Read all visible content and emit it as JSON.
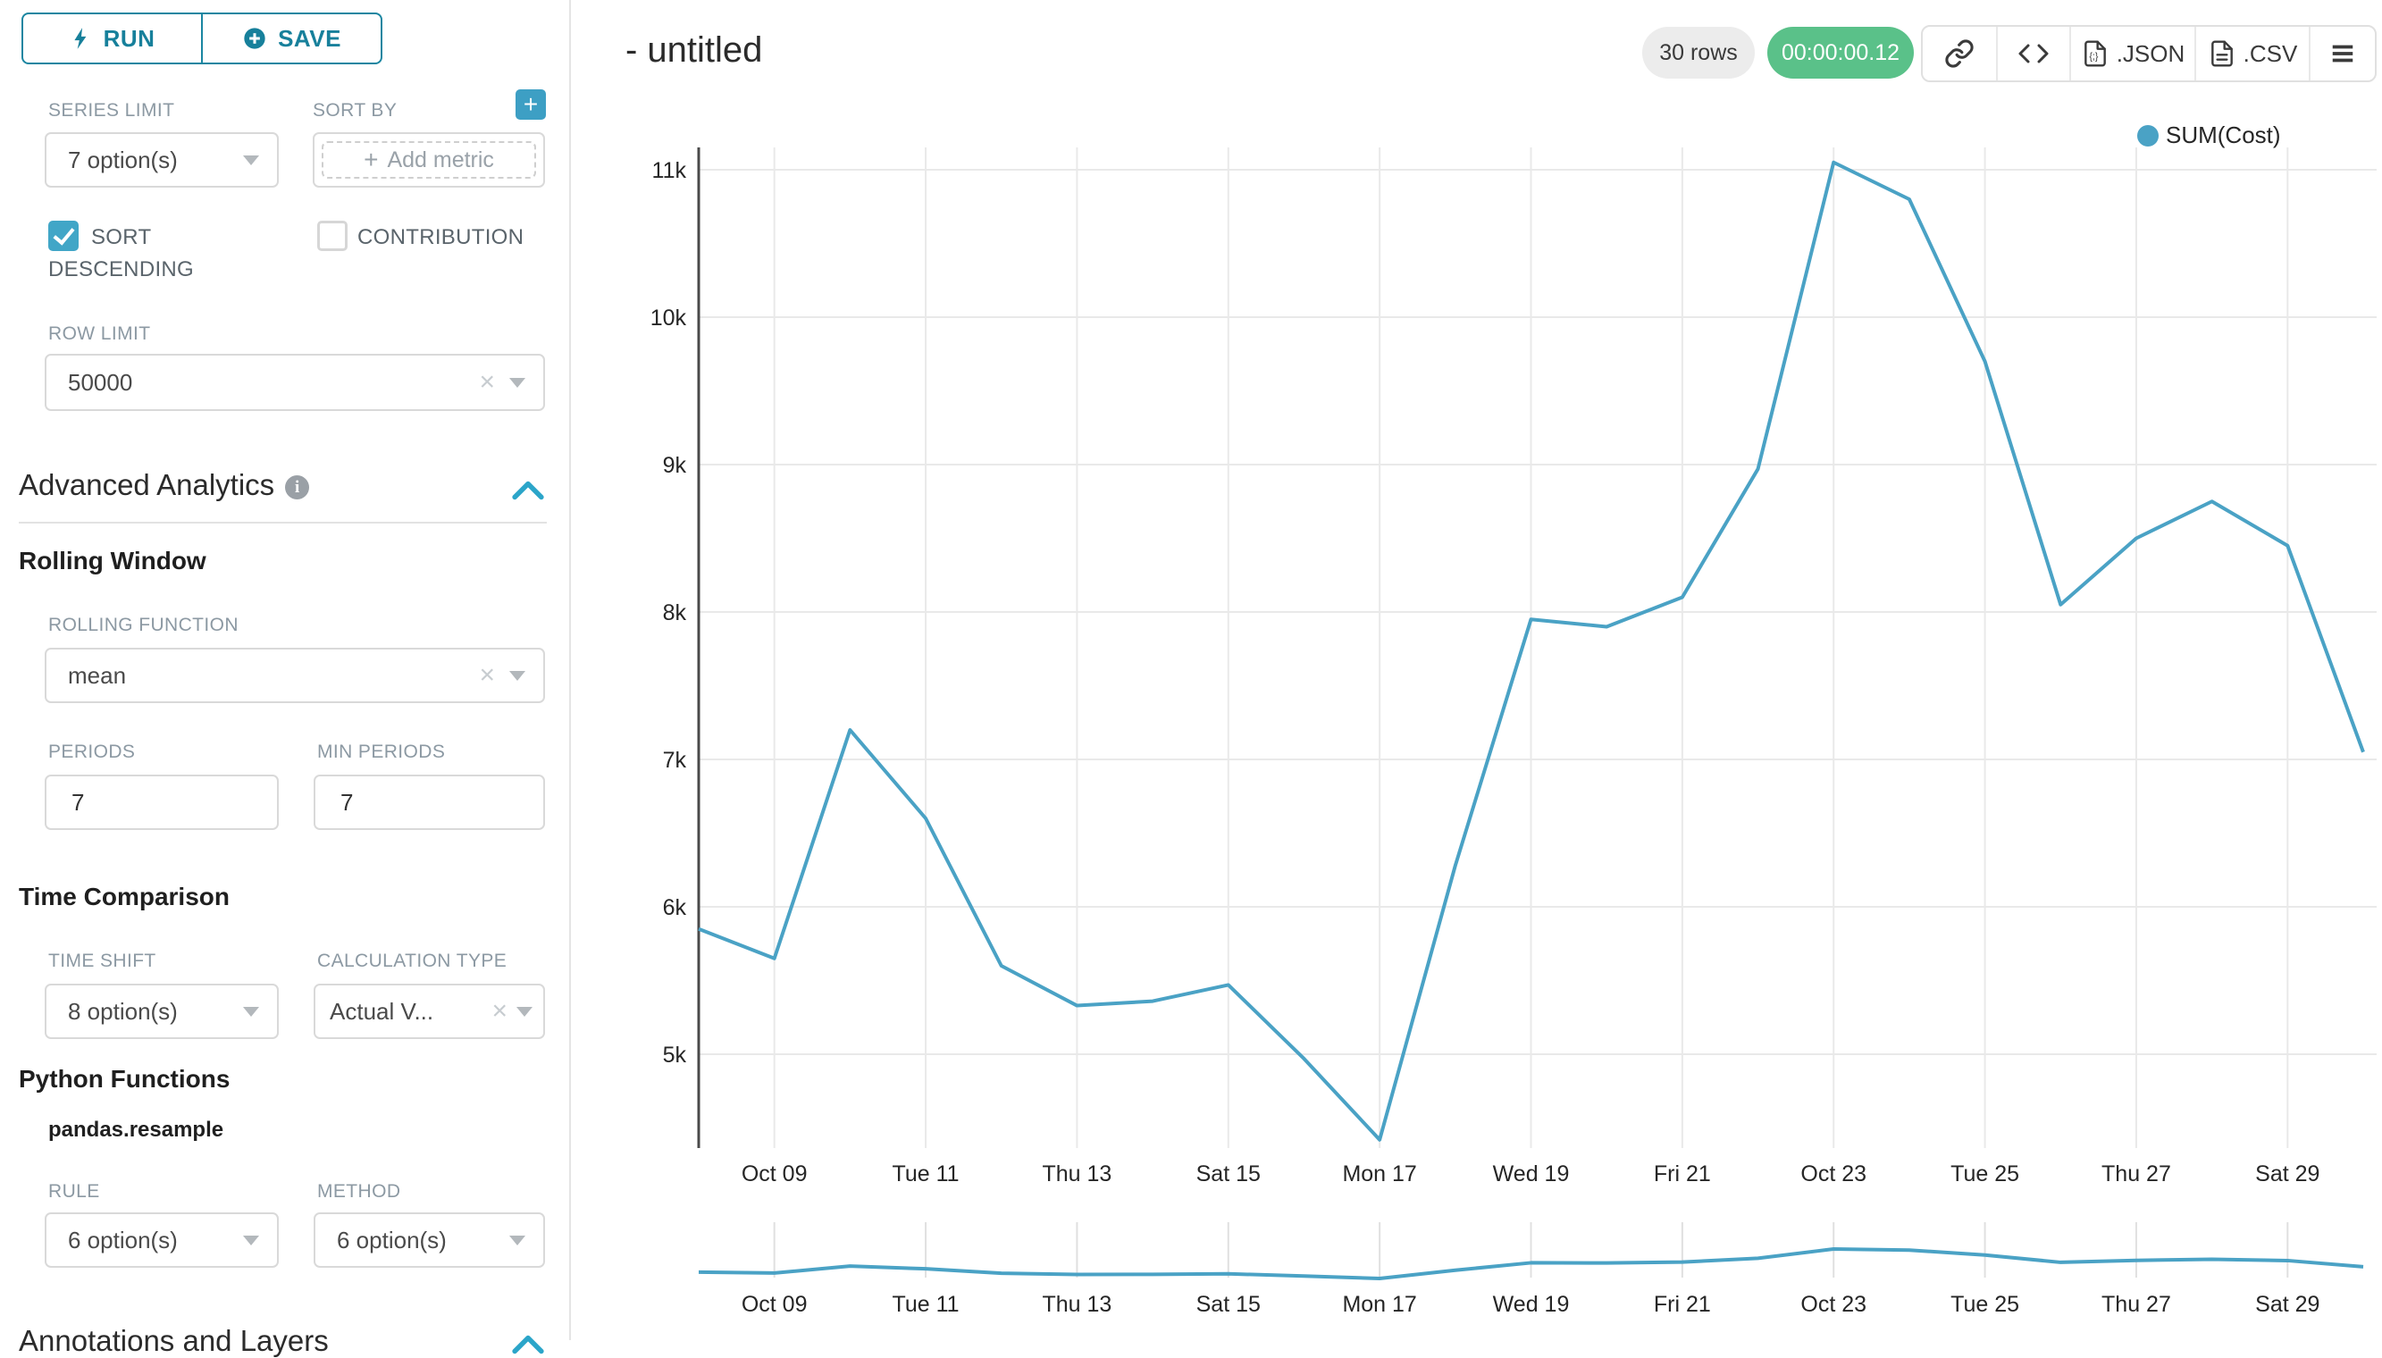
{
  "header": {
    "title": "- untitled",
    "rows_badge": "30 rows",
    "timer": "00:00:00.12",
    "json_label": ".JSON",
    "csv_label": ".CSV"
  },
  "panel": {
    "run_label": "RUN",
    "save_label": "SAVE",
    "series_limit": {
      "label": "SERIES LIMIT",
      "value": "7 option(s)"
    },
    "sort_by": {
      "label": "SORT BY",
      "placeholder": "Add metric"
    },
    "sort_descending_line1": "SORT",
    "sort_descending_line2": "DESCENDING",
    "contribution_label": "CONTRIBUTION",
    "row_limit": {
      "label": "ROW LIMIT",
      "value": "50000"
    },
    "advanced_analytics_title": "Advanced Analytics",
    "rolling_window": {
      "title": "Rolling Window",
      "rolling_function": {
        "label": "ROLLING FUNCTION",
        "value": "mean"
      },
      "periods": {
        "label": "PERIODS",
        "value": "7"
      },
      "min_periods": {
        "label": "MIN PERIODS",
        "value": "7"
      }
    },
    "time_comparison": {
      "title": "Time Comparison",
      "time_shift": {
        "label": "TIME SHIFT",
        "value": "8 option(s)"
      },
      "calculation_type": {
        "label": "CALCULATION TYPE",
        "value": "Actual V..."
      }
    },
    "python_functions": {
      "title": "Python Functions",
      "subtitle": "pandas.resample",
      "rule": {
        "label": "RULE",
        "value": "6 option(s)"
      },
      "method": {
        "label": "METHOD",
        "value": "6 option(s)"
      }
    },
    "annotations_title": "Annotations and Layers"
  },
  "colors": {
    "accent_dark": "#17809b",
    "accent": "#41a6c7",
    "line": "#4aa2c5",
    "timer_green": "#5ac189",
    "rows_badge_bg": "#ececec",
    "grid": "#e9e9e9",
    "axis": "#4a4a4a",
    "tick_text": "#262626"
  },
  "chart_data": {
    "type": "line",
    "legend": "SUM(Cost)",
    "legend_position": "top-right",
    "grid": true,
    "ylim": [
      4250,
      11150
    ],
    "y_ticks": [
      {
        "label": "5k",
        "value": 5000
      },
      {
        "label": "6k",
        "value": 6000
      },
      {
        "label": "7k",
        "value": 7000
      },
      {
        "label": "8k",
        "value": 8000
      },
      {
        "label": "9k",
        "value": 9000
      },
      {
        "label": "10k",
        "value": 10000
      },
      {
        "label": "11k",
        "value": 11000
      }
    ],
    "x_ticks": [
      {
        "label": "Oct 09",
        "day": 1
      },
      {
        "label": "Tue 11",
        "day": 3
      },
      {
        "label": "Thu 13",
        "day": 5
      },
      {
        "label": "Sat 15",
        "day": 7
      },
      {
        "label": "Mon 17",
        "day": 9
      },
      {
        "label": "Wed 19",
        "day": 11
      },
      {
        "label": "Fri 21",
        "day": 13
      },
      {
        "label": "Oct 23",
        "day": 15
      },
      {
        "label": "Tue 25",
        "day": 17
      },
      {
        "label": "Thu 27",
        "day": 19
      },
      {
        "label": "Sat 29",
        "day": 21
      }
    ],
    "series": [
      {
        "name": "SUM(Cost)",
        "x": [
          "Oct 08",
          "Oct 09",
          "Oct 10",
          "Oct 11",
          "Oct 12",
          "Oct 13",
          "Oct 14",
          "Oct 15",
          "Oct 16",
          "Oct 17",
          "Oct 18",
          "Oct 19",
          "Oct 20",
          "Oct 21",
          "Oct 22",
          "Oct 23",
          "Oct 24",
          "Oct 25",
          "Oct 26",
          "Oct 27",
          "Oct 28",
          "Oct 29",
          "Oct 30"
        ],
        "values": [
          5850,
          5650,
          7200,
          6600,
          5600,
          5330,
          5360,
          5470,
          4970,
          4420,
          6280,
          7950,
          7900,
          8100,
          8970,
          11050,
          10800,
          9700,
          8050,
          8500,
          8750,
          8450,
          7050
        ]
      }
    ],
    "mini_chart": {
      "same_series_preview": true
    }
  }
}
